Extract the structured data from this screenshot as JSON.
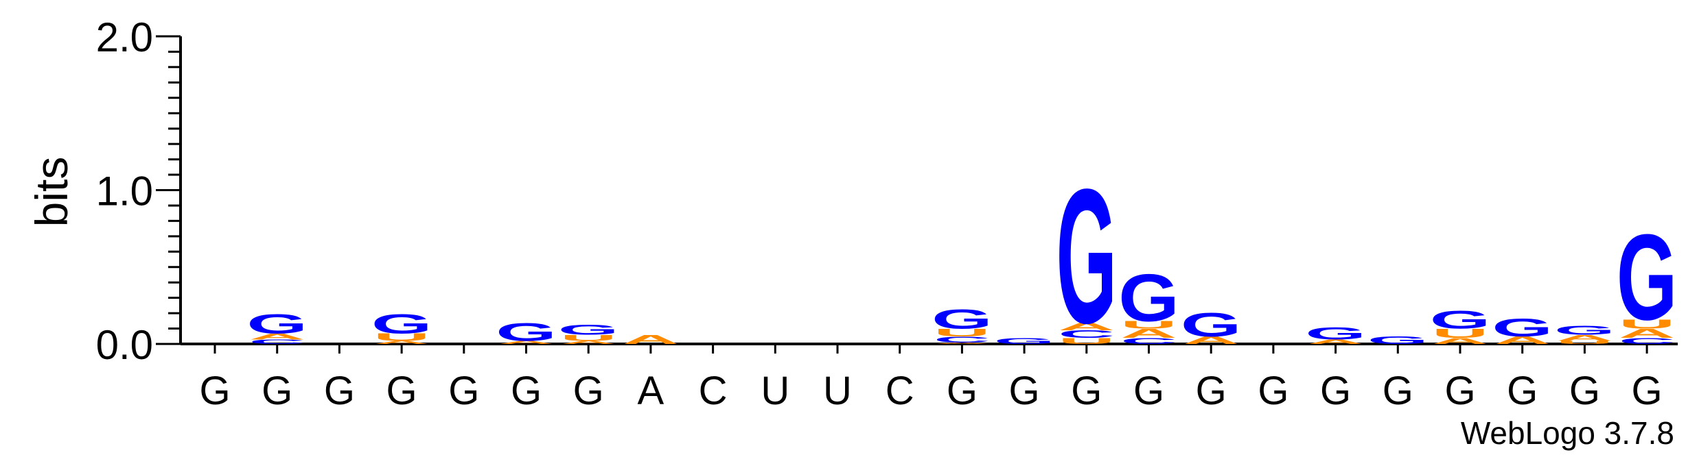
{
  "chart_data": {
    "type": "sequence-logo",
    "ylabel": "bits",
    "ylim": [
      0,
      2.0
    ],
    "yticks": [
      "0.0",
      "1.0",
      "2.0"
    ],
    "colors": {
      "G": "#0000ff",
      "A": "#ff8c00",
      "U": "#ff8c00",
      "C": "#0000ff"
    },
    "positions": [
      {
        "label": "G",
        "stack": []
      },
      {
        "label": "G",
        "stack": [
          [
            "G",
            0.13
          ],
          [
            "A",
            0.04
          ],
          [
            "C",
            0.03
          ]
        ]
      },
      {
        "label": "G",
        "stack": []
      },
      {
        "label": "G",
        "stack": [
          [
            "G",
            0.13
          ],
          [
            "U",
            0.05
          ],
          [
            "A",
            0.02
          ]
        ]
      },
      {
        "label": "G",
        "stack": []
      },
      {
        "label": "G",
        "stack": [
          [
            "G",
            0.12
          ],
          [
            "A",
            0.02
          ]
        ]
      },
      {
        "label": "G",
        "stack": [
          [
            "G",
            0.07
          ],
          [
            "U",
            0.04
          ],
          [
            "A",
            0.02
          ]
        ]
      },
      {
        "label": "A",
        "stack": [
          [
            "A",
            0.06
          ]
        ]
      },
      {
        "label": "C",
        "stack": []
      },
      {
        "label": "U",
        "stack": []
      },
      {
        "label": "U",
        "stack": []
      },
      {
        "label": "C",
        "stack": []
      },
      {
        "label": "G",
        "stack": [
          [
            "G",
            0.13
          ],
          [
            "U",
            0.05
          ],
          [
            "C",
            0.04
          ],
          [
            "A",
            0.01
          ]
        ]
      },
      {
        "label": "G",
        "stack": [
          [
            "G",
            0.04
          ]
        ]
      },
      {
        "label": "G",
        "stack": [
          [
            "G",
            0.91
          ],
          [
            "A",
            0.05
          ],
          [
            "C",
            0.05
          ],
          [
            "U",
            0.04
          ]
        ]
      },
      {
        "label": "G",
        "stack": [
          [
            "G",
            0.32
          ],
          [
            "U",
            0.05
          ],
          [
            "A",
            0.06
          ],
          [
            "C",
            0.04
          ]
        ]
      },
      {
        "label": "G",
        "stack": [
          [
            "G",
            0.16
          ],
          [
            "A",
            0.05
          ]
        ]
      },
      {
        "label": "G",
        "stack": []
      },
      {
        "label": "G",
        "stack": [
          [
            "G",
            0.08
          ],
          [
            "A",
            0.03
          ]
        ]
      },
      {
        "label": "G",
        "stack": [
          [
            "G",
            0.05
          ]
        ]
      },
      {
        "label": "G",
        "stack": [
          [
            "G",
            0.12
          ],
          [
            "U",
            0.06
          ],
          [
            "A",
            0.04
          ]
        ]
      },
      {
        "label": "G",
        "stack": [
          [
            "G",
            0.12
          ],
          [
            "A",
            0.05
          ]
        ]
      },
      {
        "label": "G",
        "stack": [
          [
            "G",
            0.06
          ],
          [
            "A",
            0.04
          ],
          [
            "U",
            0.02
          ]
        ]
      },
      {
        "label": "G",
        "stack": [
          [
            "G",
            0.58
          ],
          [
            "U",
            0.06
          ],
          [
            "A",
            0.06
          ],
          [
            "C",
            0.04
          ]
        ]
      }
    ],
    "credit": "WebLogo 3.7.8"
  }
}
